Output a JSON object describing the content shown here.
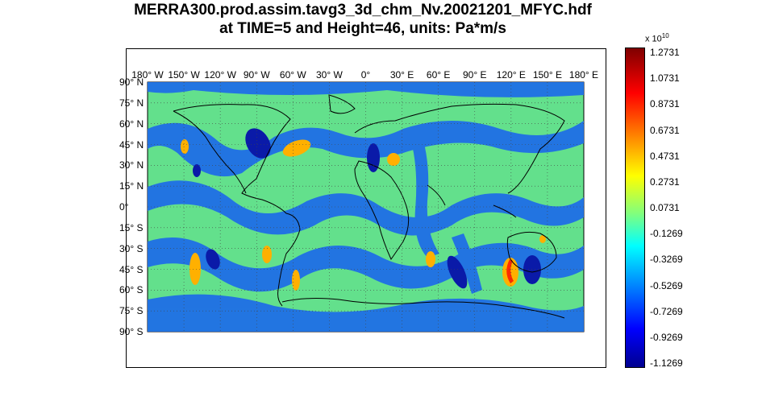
{
  "title": {
    "line1": "MERRA300.prod.assim.tavg3_3d_chm_Nv.20021201_MFYC.hdf",
    "line2": "at TIME=5 and Height=46, units: Pa*m/s"
  },
  "map": {
    "lon_labels": [
      "180° W",
      "150° W",
      "120° W",
      "90° W",
      "60° W",
      "30° W",
      "0°",
      "30° E",
      "60° E",
      "90° E",
      "120° E",
      "150° E",
      "180° E"
    ],
    "lat_labels": [
      "90° N",
      "75° N",
      "60° N",
      "45° N",
      "30° N",
      "15° N",
      "0°",
      "15° S",
      "30° S",
      "45° S",
      "60° S",
      "75° S",
      "90° S"
    ],
    "colors": {
      "background_field": "#63e08c",
      "band": "#1f6fe6",
      "high": "#ffb000",
      "peak": "#ff2a00",
      "low": "#0a1aa8",
      "coast": "#000000"
    }
  },
  "colorbar": {
    "exponent_label": "x 10",
    "exponent_power": "10",
    "ticks": [
      "1.2731",
      "1.0731",
      "0.8731",
      "0.6731",
      "0.4731",
      "0.2731",
      "0.0731",
      "-0.1269",
      "-0.3269",
      "-0.5269",
      "-0.7269",
      "-0.9269",
      "-1.1269"
    ],
    "range": [
      -1.1269,
      1.2731
    ]
  }
}
